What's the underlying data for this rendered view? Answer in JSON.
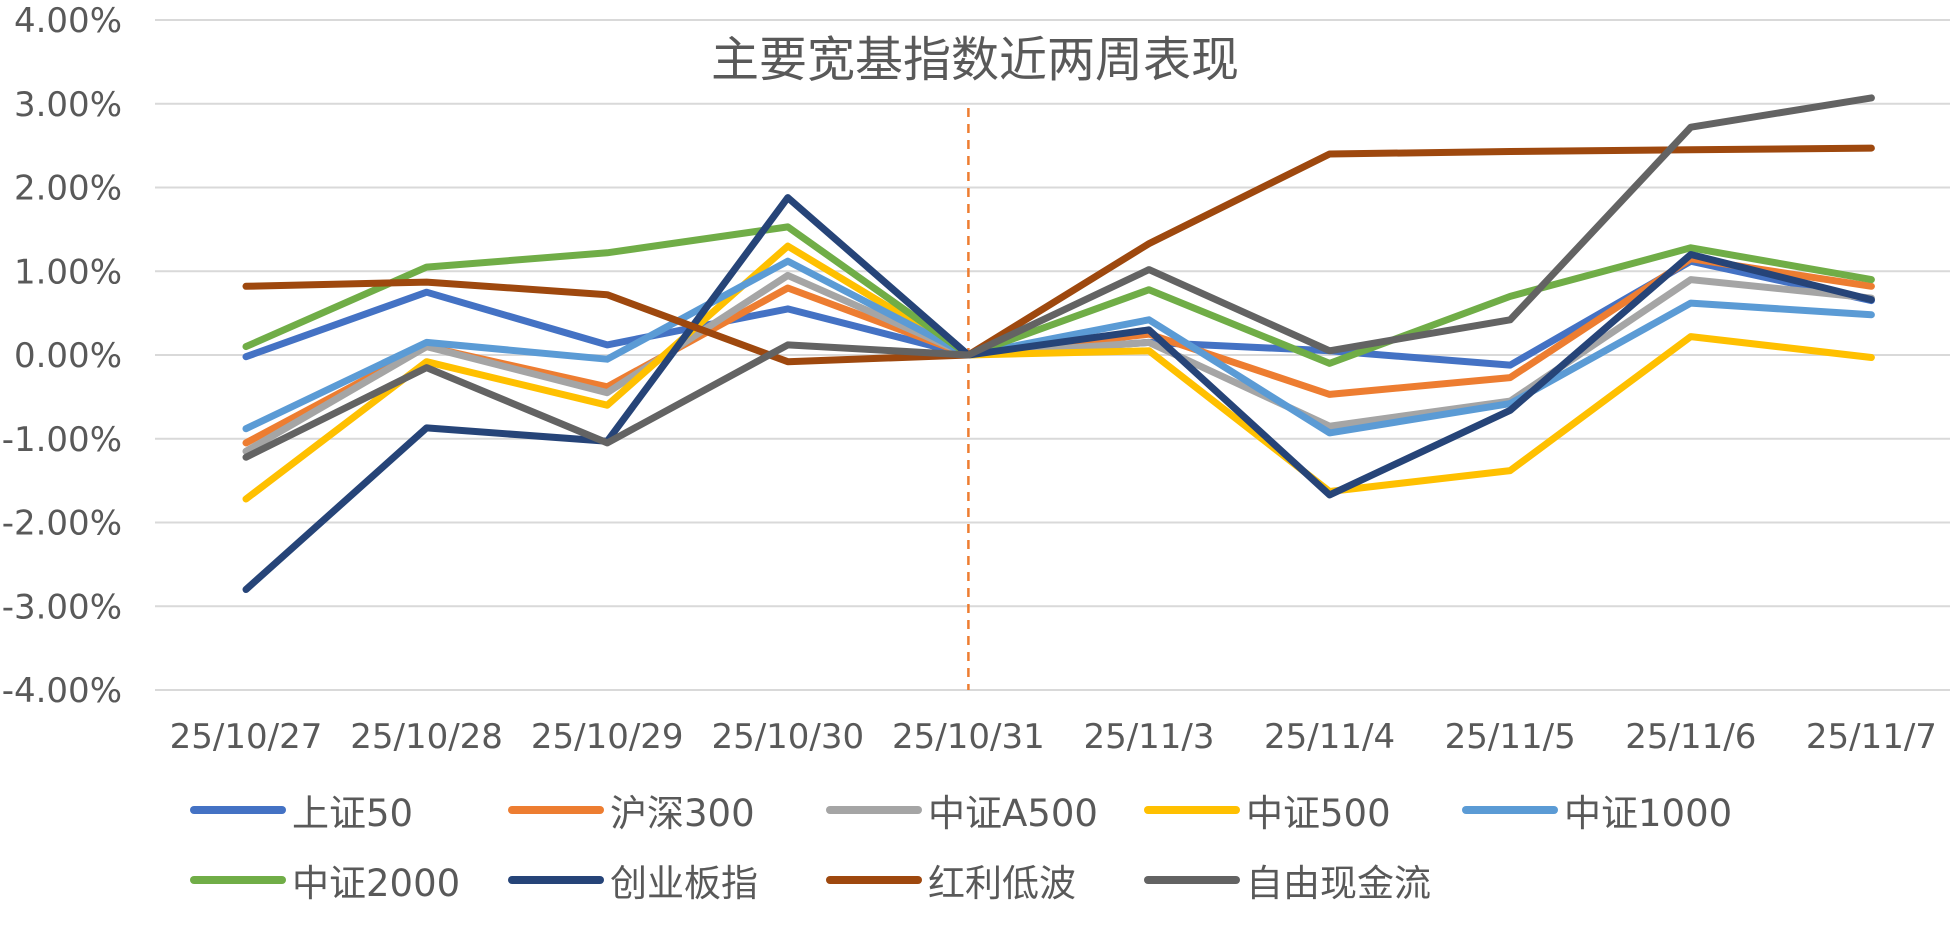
{
  "chart_data": {
    "type": "line",
    "title": "主要宽基指数近两周表现",
    "xlabel": "",
    "ylabel": "",
    "categories": [
      "25/10/27",
      "25/10/28",
      "25/10/29",
      "25/10/30",
      "25/10/31",
      "25/11/3",
      "25/11/4",
      "25/11/5",
      "25/11/6",
      "25/11/7"
    ],
    "ylim": [
      -4,
      4
    ],
    "yticks": [
      {
        "value": 4,
        "label": "4.00%"
      },
      {
        "value": 3,
        "label": "3.00%"
      },
      {
        "value": 2,
        "label": "2.00%"
      },
      {
        "value": 1,
        "label": "1.00%"
      },
      {
        "value": 0,
        "label": "0.00%"
      },
      {
        "value": -1,
        "label": "-1.00%"
      },
      {
        "value": -2,
        "label": "-2.00%"
      },
      {
        "value": -3,
        "label": "-3.00%"
      },
      {
        "value": -4,
        "label": "-4.00%"
      }
    ],
    "grid": true,
    "legend_position": "bottom",
    "reference_line": {
      "category": "25/10/31",
      "color": "#ED7D31",
      "style": "dashed"
    },
    "series": [
      {
        "name": "上证50",
        "color": "#4472C4",
        "values": [
          -0.02,
          0.75,
          0.12,
          0.55,
          0.0,
          0.15,
          0.05,
          -0.12,
          1.12,
          0.65
        ]
      },
      {
        "name": "沪深300",
        "color": "#ED7D31",
        "values": [
          -1.05,
          0.1,
          -0.38,
          0.8,
          0.0,
          0.25,
          -0.47,
          -0.27,
          1.15,
          0.82
        ]
      },
      {
        "name": "中证A500",
        "color": "#A5A5A5",
        "values": [
          -1.15,
          0.1,
          -0.45,
          0.95,
          0.0,
          0.15,
          -0.85,
          -0.55,
          0.9,
          0.68
        ]
      },
      {
        "name": "中证500",
        "color": "#FFC000",
        "values": [
          -1.72,
          -0.08,
          -0.6,
          1.3,
          0.0,
          0.05,
          -1.63,
          -1.38,
          0.22,
          -0.03
        ]
      },
      {
        "name": "中证1000",
        "color": "#5B9BD5",
        "values": [
          -0.88,
          0.15,
          -0.05,
          1.12,
          0.0,
          0.42,
          -0.93,
          -0.58,
          0.62,
          0.48
        ]
      },
      {
        "name": "中证2000",
        "color": "#70AD47",
        "values": [
          0.1,
          1.05,
          1.22,
          1.53,
          0.0,
          0.78,
          -0.1,
          0.7,
          1.28,
          0.9
        ]
      },
      {
        "name": "创业板指",
        "color": "#264478",
        "values": [
          -2.8,
          -0.87,
          -1.03,
          1.88,
          0.0,
          0.3,
          -1.67,
          -0.66,
          1.2,
          0.66
        ]
      },
      {
        "name": "红利低波",
        "color": "#9E480E",
        "values": [
          0.82,
          0.87,
          0.72,
          -0.08,
          0.0,
          1.33,
          2.4,
          2.43,
          2.45,
          2.47
        ]
      },
      {
        "name": "自由现金流",
        "color": "#636363",
        "values": [
          -1.22,
          -0.15,
          -1.05,
          0.12,
          0.0,
          1.02,
          0.05,
          0.42,
          2.72,
          3.07
        ]
      }
    ]
  }
}
